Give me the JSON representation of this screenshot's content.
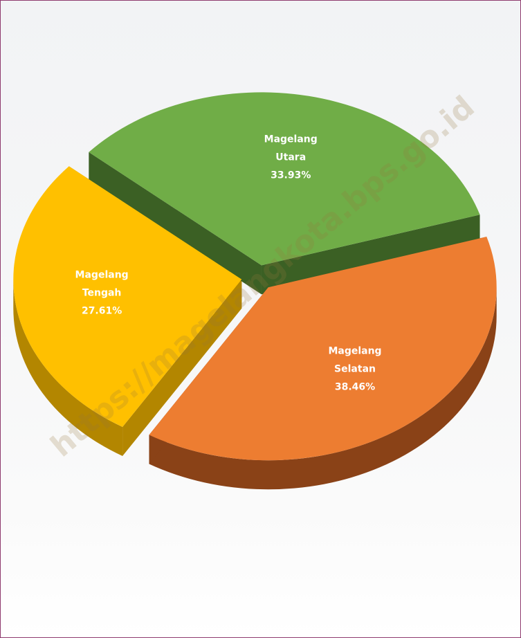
{
  "chart_data": {
    "type": "pie",
    "style": "3d-exploded",
    "slices": [
      {
        "line1": "Magelang",
        "line2": "Selatan",
        "pct_label": "38.46%",
        "value": 38.46,
        "color": "#ed7d31",
        "side_color": "#8a4217"
      },
      {
        "line1": "Magelang",
        "line2": "Tengah",
        "pct_label": "27.61%",
        "value": 27.61,
        "color": "#ffc000",
        "side_color": "#b38600"
      },
      {
        "line1": "Magelang",
        "line2": "Utara",
        "pct_label": "33.93%",
        "value": 33.93,
        "color": "#70ad47",
        "side_color": "#3b6024"
      }
    ]
  },
  "watermark": "https://magelangkota.bps.go.id"
}
